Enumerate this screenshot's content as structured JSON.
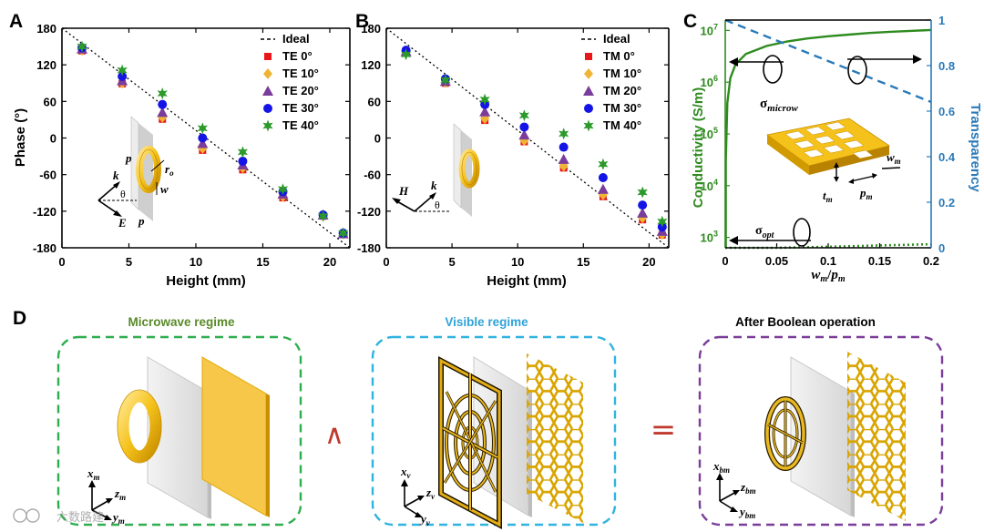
{
  "colors": {
    "te0": "#e8171a",
    "te10": "#f0b434",
    "te20": "#7b3d9b",
    "te30": "#1414e6",
    "te40": "#2b9a2b",
    "ideal": "#000000",
    "conductivity": "#2e8b1e",
    "transparency": "#2a7ab8",
    "microwave_box": "#2fae4f",
    "visible_box": "#30b3df",
    "boolean_box": "#7b3d9b",
    "gold": "#f5c21b",
    "glass": "#e2e2e2",
    "operator": "#c0392b"
  },
  "panels": {
    "A": "A",
    "B": "B",
    "C": "C",
    "D": "D"
  },
  "chart_data": [
    {
      "id": "A",
      "type": "scatter",
      "xlabel": "Height (mm)",
      "ylabel": "Phase (°)",
      "xlim": [
        0,
        21.5
      ],
      "ylim": [
        -180,
        180
      ],
      "xticks": [
        0,
        5,
        10,
        15,
        20
      ],
      "yticks": [
        180,
        120,
        60,
        0,
        -60,
        -120,
        -180
      ],
      "legend_position": "top-right",
      "ideal": {
        "name": "Ideal",
        "x": [
          0,
          21.5
        ],
        "y": [
          180,
          -180
        ]
      },
      "x": [
        1.5,
        4.5,
        7.5,
        10.5,
        13.5,
        16.5,
        19.5,
        21.0
      ],
      "series": [
        {
          "name": "TE 0°",
          "marker": "square",
          "color_key": "te0",
          "values": [
            143,
            89,
            31,
            -20,
            -52,
            -98,
            -128,
            -158
          ]
        },
        {
          "name": "TE 10°",
          "marker": "diamond",
          "color_key": "te10",
          "values": [
            144,
            90,
            34,
            -17,
            -49,
            -96,
            -127,
            -157
          ]
        },
        {
          "name": "TE 20°",
          "marker": "triangle",
          "color_key": "te20",
          "values": [
            146,
            94,
            42,
            -9,
            -44,
            -92,
            -126,
            -157
          ]
        },
        {
          "name": "TE 30°",
          "marker": "circle",
          "color_key": "te30",
          "values": [
            148,
            101,
            55,
            0,
            -38,
            -88,
            -126,
            -156
          ]
        },
        {
          "name": "TE 40°",
          "marker": "star",
          "color_key": "te40",
          "values": [
            150,
            111,
            73,
            16,
            -23,
            -84,
            -128,
            -156
          ]
        }
      ],
      "inset_labels": {
        "k": "k",
        "E": "E",
        "theta": "θ",
        "p1": "p",
        "p2": "p",
        "w": "w",
        "r": "r",
        "r_sub": "o"
      }
    },
    {
      "id": "B",
      "type": "scatter",
      "xlabel": "Height (mm)",
      "ylabel": "",
      "xlim": [
        0,
        21.5
      ],
      "ylim": [
        -180,
        180
      ],
      "xticks": [
        0,
        5,
        10,
        15,
        20
      ],
      "yticks": [
        180,
        120,
        60,
        0,
        -60,
        -120,
        -180
      ],
      "legend_position": "top-right",
      "ideal": {
        "name": "Ideal",
        "x": [
          0,
          21.5
        ],
        "y": [
          180,
          -180
        ]
      },
      "x": [
        1.5,
        4.5,
        7.5,
        10.5,
        13.5,
        16.5,
        19.5,
        21.0
      ],
      "series": [
        {
          "name": "TM 0°",
          "marker": "square",
          "color_key": "te0",
          "values": [
            140,
            90,
            29,
            -6,
            -49,
            -96,
            -134,
            -159
          ]
        },
        {
          "name": "TM 10°",
          "marker": "diamond",
          "color_key": "te10",
          "values": [
            141,
            91,
            32,
            -4,
            -46,
            -93,
            -131,
            -158
          ]
        },
        {
          "name": "TM 20°",
          "marker": "triangle",
          "color_key": "te20",
          "values": [
            142,
            93,
            43,
            5,
            -35,
            -84,
            -123,
            -153
          ]
        },
        {
          "name": "TM 30°",
          "marker": "circle",
          "color_key": "te30",
          "values": [
            144,
            97,
            55,
            18,
            -15,
            -65,
            -110,
            -146
          ]
        },
        {
          "name": "TM 40°",
          "marker": "star",
          "color_key": "te40",
          "values": [
            137,
            95,
            63,
            37,
            7,
            -43,
            -89,
            -137
          ]
        }
      ],
      "inset_labels": {
        "k": "k",
        "H": "H",
        "theta": "θ"
      }
    },
    {
      "id": "C",
      "type": "line",
      "xlabel_main": "w",
      "xlabel_main_sub": "m",
      "xlabel_div": "/",
      "xlabel_den": "p",
      "xlabel_den_sub": "m",
      "ylabel_left": "Conductivity (S/m)",
      "ylabel_right": "Transparency",
      "xlim": [
        0,
        0.2
      ],
      "ylim_left_log10": [
        2.8,
        7.2
      ],
      "ylim_right": [
        0,
        1
      ],
      "xticks": [
        "0",
        "0.05",
        "0.1",
        "0.15",
        "0.2"
      ],
      "yticks_left": [
        {
          "base": "10",
          "exp": "7"
        },
        {
          "base": "10",
          "exp": "6"
        },
        {
          "base": "10",
          "exp": "5"
        },
        {
          "base": "10",
          "exp": "4"
        },
        {
          "base": "10",
          "exp": "3"
        }
      ],
      "yticks_right": [
        "1",
        "0.8",
        "0.6",
        "0.4",
        "0.2",
        "0"
      ],
      "series": [
        {
          "name_base": "σ",
          "name_sub": "microw",
          "axis": "left",
          "style": "solid",
          "color_key": "conductivity",
          "x": [
            0.0005,
            0.002,
            0.005,
            0.01,
            0.02,
            0.04,
            0.06,
            0.08,
            0.1,
            0.12,
            0.14,
            0.16,
            0.18,
            0.2
          ],
          "values": [
            30000,
            400000,
            1200000,
            2200000,
            3500000,
            5000000,
            6100000,
            7000000,
            7700000,
            8300000,
            8900000,
            9400000,
            9800000,
            10200000
          ]
        },
        {
          "name_base": "σ",
          "name_sub": "opt",
          "axis": "left",
          "style": "dotted",
          "color_key": "conductivity",
          "x": [
            0,
            0.05,
            0.1,
            0.15,
            0.2
          ],
          "values": [
            600,
            630,
            660,
            700,
            740
          ]
        },
        {
          "name": "Transparency",
          "axis": "right",
          "style": "dashed",
          "color_key": "transparency",
          "x": [
            0,
            0.05,
            0.1,
            0.15,
            0.2
          ],
          "values": [
            1.0,
            0.91,
            0.82,
            0.73,
            0.64
          ]
        }
      ],
      "inset_labels": {
        "w": "w",
        "w_sub": "m",
        "t": "t",
        "t_sub": "m",
        "p": "p",
        "p_sub": "m"
      }
    }
  ],
  "panel_d": {
    "microwave": {
      "title": "Microwave regime",
      "x": "x",
      "x_sub": "m",
      "y": "y",
      "y_sub": "m",
      "z": "z",
      "z_sub": "m"
    },
    "operator_and": "∧",
    "visible": {
      "title": "Visible regime",
      "x": "x",
      "x_sub": "v",
      "y": "y",
      "y_sub": "v",
      "z": "z",
      "z_sub": "v"
    },
    "operator_eq": "=",
    "boolean": {
      "title": "After Boolean operation",
      "x": "x",
      "x_sub": "bm",
      "y": "y",
      "y_sub": "bm",
      "z": "z",
      "z_sub": "bm"
    },
    "watermark": "六数路建"
  }
}
